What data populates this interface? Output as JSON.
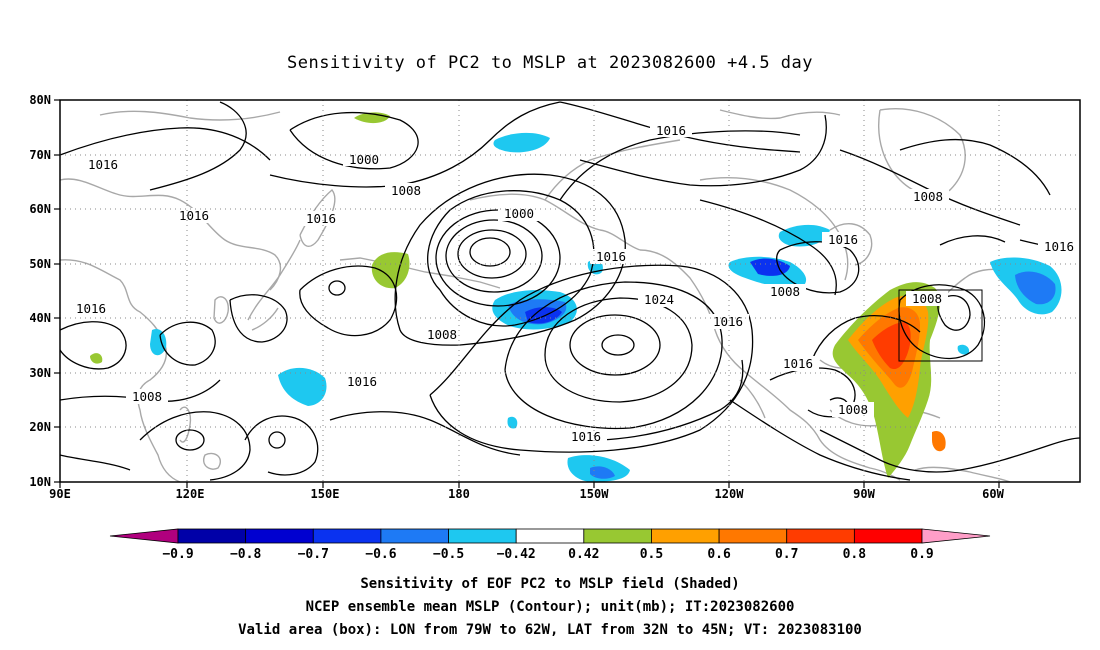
{
  "title": "Sensitivity of PC2 to MSLP at 2023082600 +4.5 day",
  "lat_labels": [
    "80N",
    "70N",
    "60N",
    "50N",
    "40N",
    "30N",
    "20N",
    "10N"
  ],
  "lon_labels": [
    "90E",
    "120E",
    "150E",
    "180",
    "150W",
    "120W",
    "90W",
    "60W"
  ],
  "colorbar": {
    "labels": [
      "-0.9",
      "-0.8",
      "-0.7",
      "-0.6",
      "-0.5",
      "-0.42",
      "0.42",
      "0.5",
      "0.6",
      "0.7",
      "0.8",
      "0.9"
    ],
    "colors": [
      "#b0007e",
      "#0000a8",
      "#0000d0",
      "#0a32f0",
      "#1e7af5",
      "#1ec8f0",
      "#ffffff",
      "#98c832",
      "#ffa000",
      "#ff7800",
      "#ff3c00",
      "#ff0000",
      "#ff9ec8"
    ]
  },
  "contour_labels": [
    "1016",
    "1000",
    "1016",
    "1008",
    "1016",
    "1016",
    "1000",
    "1016",
    "1008",
    "1016",
    "1024",
    "1016",
    "1008",
    "1016",
    "1008",
    "1016",
    "1008",
    "1016",
    "1016",
    "1008",
    "1016",
    "1008"
  ],
  "caption": {
    "line1": "Sensitivity of EOF PC2 to MSLP field (Shaded)",
    "line2": "NCEP ensemble mean MSLP (Contour); unit(mb); IT:2023082600",
    "line3": "Valid area (box): LON from 79W to 62W, LAT from 32N to 45N; VT: 2023083100"
  }
}
